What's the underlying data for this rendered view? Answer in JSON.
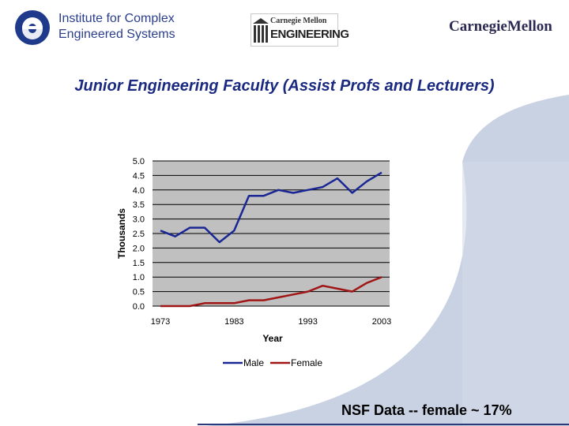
{
  "header": {
    "institute_logo": {
      "line1": "Institute for Complex",
      "line2": "Engineered Systems"
    },
    "cmu_engineering_logo": {
      "line1": "Carnegie Mellon",
      "line2": "ENGINEERING"
    },
    "cmu_logo": "CarnegieMellon"
  },
  "slide": {
    "title": "Junior Engineering Faculty (Assist Profs and Lecturers)",
    "footer_note": "NSF Data  -- female ~ 17%"
  },
  "colors": {
    "male": "#1a2694",
    "female": "#a01515",
    "plot_bg": "#c0c0c0",
    "title": "#1a2a80"
  },
  "chart_data": {
    "type": "line",
    "title": "",
    "xlabel": "Year",
    "ylabel": "Thousands",
    "x": [
      1973,
      1975,
      1977,
      1979,
      1981,
      1983,
      1985,
      1987,
      1989,
      1991,
      1993,
      1995,
      1997,
      1999,
      2001,
      2003
    ],
    "x_ticks": [
      "1973",
      "1983",
      "1993",
      "2003"
    ],
    "y_ticks": [
      "0.0",
      "0.5",
      "1.0",
      "1.5",
      "2.0",
      "2.5",
      "3.0",
      "3.5",
      "4.0",
      "4.5",
      "5.0"
    ],
    "ylim": [
      0,
      5
    ],
    "grid": true,
    "legend": "bottom",
    "series": [
      {
        "name": "Male",
        "values": [
          2.6,
          2.4,
          2.7,
          2.7,
          2.2,
          2.6,
          3.8,
          3.8,
          4.0,
          3.9,
          4.0,
          4.1,
          4.4,
          3.9,
          4.3,
          4.6
        ]
      },
      {
        "name": "Female",
        "values": [
          0.0,
          0.0,
          0.0,
          0.1,
          0.1,
          0.1,
          0.2,
          0.2,
          0.3,
          0.4,
          0.5,
          0.7,
          0.6,
          0.5,
          0.8,
          1.0
        ]
      }
    ]
  }
}
